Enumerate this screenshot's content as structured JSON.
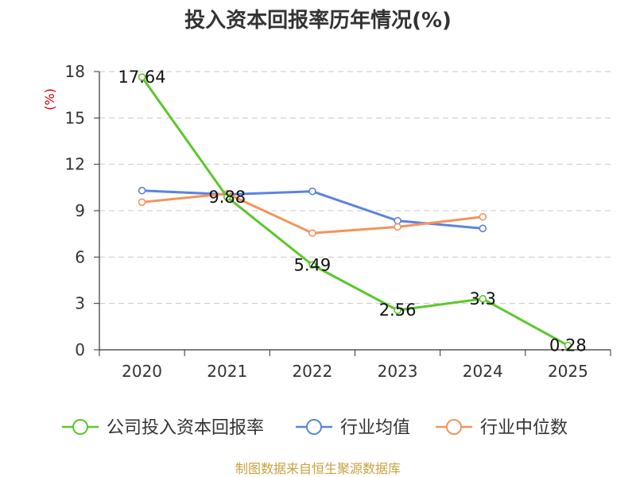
{
  "chart_data": {
    "type": "line",
    "title": "投入资本回报率历年情况(%)",
    "ylabel": "(%)",
    "xlabel": "",
    "categories": [
      "2020",
      "2021",
      "2022",
      "2023",
      "2024",
      "2025"
    ],
    "ylim": [
      0,
      18
    ],
    "yticks": [
      0,
      3,
      6,
      9,
      12,
      15,
      18
    ],
    "grid": true,
    "series": [
      {
        "name": "公司投入资本回报率",
        "color": "#5cc72c",
        "values": [
          17.64,
          9.88,
          5.49,
          2.56,
          3.3,
          0.28
        ],
        "labels": [
          "17.64",
          "9.88",
          "5.49",
          "2.56",
          "3.3",
          "0.28"
        ]
      },
      {
        "name": "行业均值",
        "color": "#5b84dd",
        "values": [
          10.3,
          10.05,
          10.25,
          8.35,
          7.85,
          null
        ]
      },
      {
        "name": "行业中位数",
        "color": "#f2945d",
        "values": [
          9.55,
          10.1,
          7.55,
          7.95,
          8.6,
          null
        ]
      }
    ],
    "legend_position": "bottom",
    "source": "制图数据来自恒生聚源数据库",
    "source_color": "#c9a23f",
    "ylabel_color": "#cc0000"
  }
}
